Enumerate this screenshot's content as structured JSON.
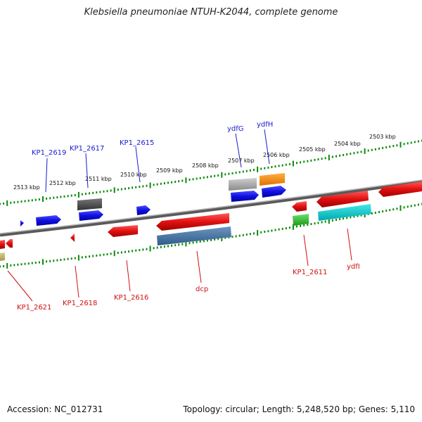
{
  "title": "Klebsiella pneumoniae NTUH-K2044, complete genome",
  "footer": {
    "accession": "Accession: NC_012731",
    "topology": "Topology: circular; Length: 5,248,520 bp; Genes: 5,110"
  },
  "scale_labels": [
    "2513 kbp",
    "2512 kbp",
    "2511 kbp",
    "2510 kbp",
    "2509 kbp",
    "2508 kbp",
    "2507 kbp",
    "2506 kbp",
    "2505 kbp",
    "2504 kbp",
    "2503 kbp"
  ],
  "forward_gene_labels": [
    "KP1_2619",
    "KP1_2617",
    "KP1_2615",
    "ydfG",
    "ydfH"
  ],
  "reverse_gene_labels": [
    "KP1_2621",
    "KP1_2618",
    "KP1_2616",
    "dcp",
    "KP1_2611",
    "ydfI"
  ],
  "colors": {
    "forward": "#1010e0",
    "reverse": "#e01010",
    "axis": "#888888",
    "ticks": "#0a8a0a"
  }
}
